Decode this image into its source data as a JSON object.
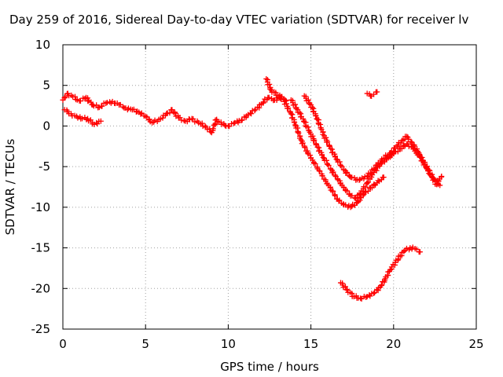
{
  "chart_data": {
    "type": "scatter",
    "title": "Day 259 of 2016, Sidereal Day-to-day VTEC variation (SDTVAR) for receiver lv",
    "xlabel": "GPS time / hours",
    "ylabel": "SDTVAR / TECUs",
    "xlim": [
      0,
      25
    ],
    "ylim": [
      -25,
      10
    ],
    "xticks": [
      0,
      5,
      10,
      15,
      20,
      25
    ],
    "yticks": [
      -25,
      -20,
      -15,
      -10,
      -5,
      0,
      5,
      10
    ],
    "xtick_labels": [
      "0",
      "5",
      "10",
      "15",
      "20",
      "25"
    ],
    "ytick_labels": [
      "-25",
      "-20",
      "-15",
      "-10",
      "-5",
      "0",
      "5",
      "10"
    ],
    "grid": true,
    "marker": "+",
    "color": "#ff0000",
    "series": [
      {
        "name": "track-1",
        "points": [
          [
            0.0,
            3.2
          ],
          [
            0.3,
            4.0
          ],
          [
            0.6,
            3.6
          ],
          [
            1.0,
            3.1
          ],
          [
            1.4,
            3.5
          ],
          [
            1.8,
            2.6
          ],
          [
            2.2,
            2.3
          ],
          [
            2.6,
            2.8
          ],
          [
            3.0,
            3.0
          ],
          [
            3.4,
            2.6
          ],
          [
            3.8,
            2.2
          ],
          [
            4.2,
            2.0
          ],
          [
            4.6,
            1.7
          ],
          [
            5.0,
            1.2
          ],
          [
            5.4,
            0.4
          ],
          [
            5.8,
            0.8
          ],
          [
            6.2,
            1.3
          ],
          [
            6.6,
            2.0
          ],
          [
            7.0,
            1.0
          ],
          [
            7.4,
            0.6
          ],
          [
            7.8,
            0.9
          ],
          [
            8.2,
            0.4
          ],
          [
            8.6,
            0.0
          ],
          [
            9.0,
            -0.8
          ],
          [
            9.3,
            0.8
          ],
          [
            9.6,
            0.2
          ],
          [
            10.0,
            0.0
          ],
          [
            10.4,
            0.4
          ],
          [
            10.8,
            0.7
          ],
          [
            11.2,
            1.4
          ],
          [
            11.6,
            1.9
          ],
          [
            12.0,
            2.7
          ],
          [
            12.4,
            3.5
          ],
          [
            12.8,
            3.2
          ],
          [
            13.2,
            3.6
          ],
          [
            13.5,
            3.1
          ]
        ]
      },
      {
        "name": "track-2",
        "points": [
          [
            0.1,
            2.0
          ],
          [
            0.5,
            1.5
          ],
          [
            0.9,
            1.0
          ],
          [
            1.5,
            0.9
          ],
          [
            1.9,
            0.2
          ],
          [
            2.3,
            0.6
          ]
        ]
      },
      {
        "name": "track-3",
        "points": [
          [
            12.3,
            5.8
          ],
          [
            12.6,
            4.4
          ],
          [
            13.0,
            3.8
          ],
          [
            13.4,
            3.0
          ],
          [
            13.8,
            1.5
          ],
          [
            14.1,
            0.0
          ],
          [
            14.4,
            -1.7
          ],
          [
            14.8,
            -3.3
          ],
          [
            15.1,
            -4.2
          ],
          [
            15.5,
            -5.5
          ],
          [
            15.9,
            -6.8
          ],
          [
            16.3,
            -8.0
          ],
          [
            16.6,
            -9.0
          ],
          [
            17.0,
            -9.7
          ],
          [
            17.4,
            -10.0
          ],
          [
            17.8,
            -9.4
          ],
          [
            18.2,
            -8.4
          ],
          [
            18.6,
            -7.6
          ],
          [
            19.0,
            -7.0
          ],
          [
            19.4,
            -6.3
          ]
        ]
      },
      {
        "name": "track-4",
        "points": [
          [
            13.8,
            3.2
          ],
          [
            14.2,
            2.0
          ],
          [
            14.6,
            0.5
          ],
          [
            15.0,
            -1.0
          ],
          [
            15.4,
            -2.6
          ],
          [
            15.8,
            -4.0
          ],
          [
            16.2,
            -5.3
          ],
          [
            16.6,
            -6.5
          ],
          [
            17.0,
            -7.6
          ],
          [
            17.4,
            -8.6
          ],
          [
            17.7,
            -8.9
          ],
          [
            18.0,
            -8.3
          ],
          [
            18.4,
            -7.0
          ],
          [
            18.8,
            -5.7
          ],
          [
            19.2,
            -4.7
          ],
          [
            19.6,
            -4.0
          ],
          [
            20.0,
            -3.4
          ],
          [
            20.4,
            -2.8
          ],
          [
            20.8,
            -2.2
          ],
          [
            21.2,
            -2.8
          ],
          [
            21.6,
            -3.8
          ],
          [
            22.0,
            -5.2
          ],
          [
            22.4,
            -6.4
          ],
          [
            22.8,
            -7.3
          ]
        ]
      },
      {
        "name": "track-5",
        "points": [
          [
            14.6,
            3.7
          ],
          [
            15.0,
            2.6
          ],
          [
            15.4,
            0.8
          ],
          [
            15.8,
            -1.2
          ],
          [
            16.2,
            -2.8
          ],
          [
            16.6,
            -4.2
          ],
          [
            17.0,
            -5.4
          ],
          [
            17.4,
            -6.3
          ],
          [
            17.8,
            -6.6
          ],
          [
            18.2,
            -6.5
          ],
          [
            18.6,
            -5.8
          ],
          [
            19.0,
            -4.8
          ],
          [
            19.4,
            -4.0
          ],
          [
            19.8,
            -3.3
          ],
          [
            20.2,
            -2.5
          ],
          [
            20.5,
            -1.8
          ],
          [
            20.8,
            -1.3
          ],
          [
            21.1,
            -2.0
          ],
          [
            21.5,
            -3.3
          ],
          [
            21.9,
            -4.7
          ],
          [
            22.3,
            -6.2
          ],
          [
            22.6,
            -7.2
          ],
          [
            22.9,
            -6.2
          ]
        ]
      },
      {
        "name": "track-6",
        "points": [
          [
            18.4,
            4.0
          ],
          [
            18.6,
            3.7
          ],
          [
            18.8,
            3.9
          ],
          [
            19.0,
            4.2
          ]
        ]
      },
      {
        "name": "track-7",
        "points": [
          [
            16.8,
            -19.3
          ],
          [
            17.2,
            -20.2
          ],
          [
            17.6,
            -21.0
          ],
          [
            18.0,
            -21.2
          ],
          [
            18.4,
            -21.0
          ],
          [
            18.8,
            -20.6
          ],
          [
            19.2,
            -19.8
          ],
          [
            19.5,
            -18.8
          ],
          [
            19.8,
            -17.7
          ],
          [
            20.1,
            -16.8
          ],
          [
            20.4,
            -16.0
          ],
          [
            20.7,
            -15.3
          ],
          [
            21.0,
            -15.0
          ],
          [
            21.3,
            -15.1
          ],
          [
            21.6,
            -15.5
          ]
        ]
      }
    ]
  }
}
